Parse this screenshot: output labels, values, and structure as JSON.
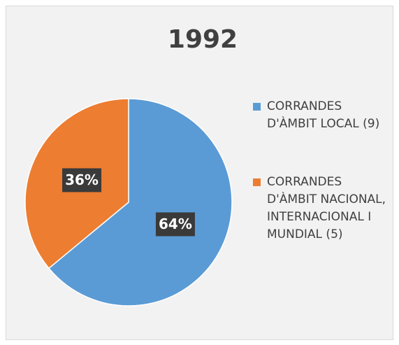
{
  "chart_data": {
    "type": "pie",
    "title": "1992",
    "labels": [
      "CORRANDES D'ÀMBIT LOCAL (9)",
      "CORRANDES D'ÀMBIT NACIONAL, INTERNACIONAL I MUNDIAL (5)"
    ],
    "values": [
      64,
      36
    ],
    "value_labels": [
      "64%",
      "36%"
    ],
    "colors": [
      "#5b9bd5",
      "#ed7d31"
    ],
    "legend": "right"
  }
}
